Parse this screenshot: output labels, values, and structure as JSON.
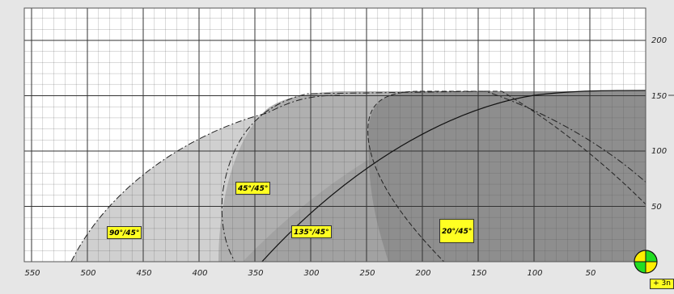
{
  "axes": {
    "x_ticks": [
      "550",
      "500",
      "450",
      "400",
      "350",
      "300",
      "250",
      "200",
      "150",
      "100",
      "50"
    ],
    "y_ticks": [
      "200",
      "150",
      "100",
      "50"
    ]
  },
  "zones": [
    {
      "label": "90°/45°",
      "shade": "#d0d0d0"
    },
    {
      "label": "45°/45°",
      "shade": "#b0b0b0"
    },
    {
      "label": "135°/45°",
      "shade": "#a2a2a2"
    },
    {
      "label": "20°/45°",
      "shade": "#8e8e8e"
    }
  ],
  "corner_tag": "+ 3n",
  "origin_marker": {
    "colors": [
      "#22dd22",
      "#ffee00"
    ]
  }
}
